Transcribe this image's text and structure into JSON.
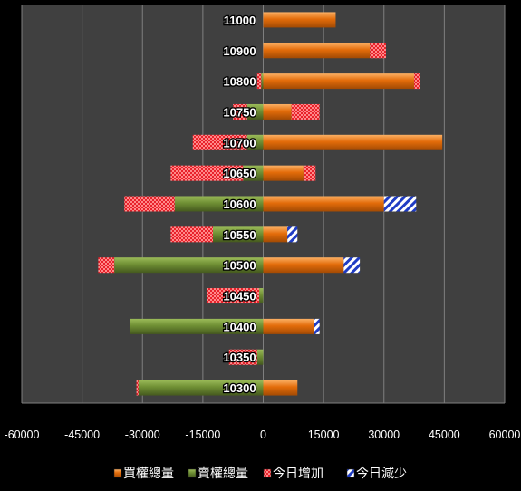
{
  "chart_data": {
    "type": "bar",
    "orientation": "horizontal",
    "stacked": true,
    "categories": [
      "10300",
      "10350",
      "10400",
      "10450",
      "10500",
      "10550",
      "10600",
      "10650",
      "10700",
      "10750",
      "10800",
      "10900",
      "11000"
    ],
    "series": [
      {
        "name": "買權總量",
        "side": "positive",
        "color": "#E36C0A",
        "values": [
          8500,
          0,
          12500,
          0,
          20000,
          6000,
          30000,
          10000,
          44500,
          7000,
          37500,
          26500,
          18000
        ]
      },
      {
        "name": "賣權總量",
        "side": "negative",
        "color": "#5C7A29",
        "values": [
          -31000,
          -1500,
          -33000,
          -1000,
          -37000,
          -12500,
          -22000,
          -5000,
          -4000,
          -4000,
          -500,
          0,
          0
        ]
      },
      {
        "name": "今日增加",
        "side": "stacked",
        "color": "#FF3B3B",
        "pattern": "red-checker",
        "positive": [
          0,
          0,
          0,
          0,
          0,
          0,
          0,
          3000,
          0,
          7000,
          1500,
          4000,
          0
        ],
        "negative": [
          -500,
          -7000,
          0,
          -13000,
          -4000,
          -10500,
          -12500,
          -18000,
          -13500,
          -3500,
          -1000,
          0,
          0
        ]
      },
      {
        "name": "今日減少",
        "side": "stacked",
        "color": "#1F3CC4",
        "pattern": "blue-stripes",
        "positive": [
          0,
          0,
          1500,
          0,
          4000,
          2500,
          8000,
          0,
          0,
          0,
          0,
          0,
          0
        ],
        "negative": [
          0,
          0,
          0,
          0,
          0,
          0,
          0,
          0,
          0,
          0,
          0,
          0,
          0
        ]
      }
    ],
    "xlim": [
      -60000,
      60000
    ],
    "xticks": [
      "-60000",
      "-45000",
      "-30000",
      "-15000",
      "0",
      "15000",
      "30000",
      "45000",
      "60000"
    ],
    "grid": true,
    "legend_position": "bottom",
    "colors": {
      "plot_bg": "#404040",
      "page_bg": "#000000",
      "grid": "#7f7f7f",
      "text": "#ffffff"
    }
  }
}
